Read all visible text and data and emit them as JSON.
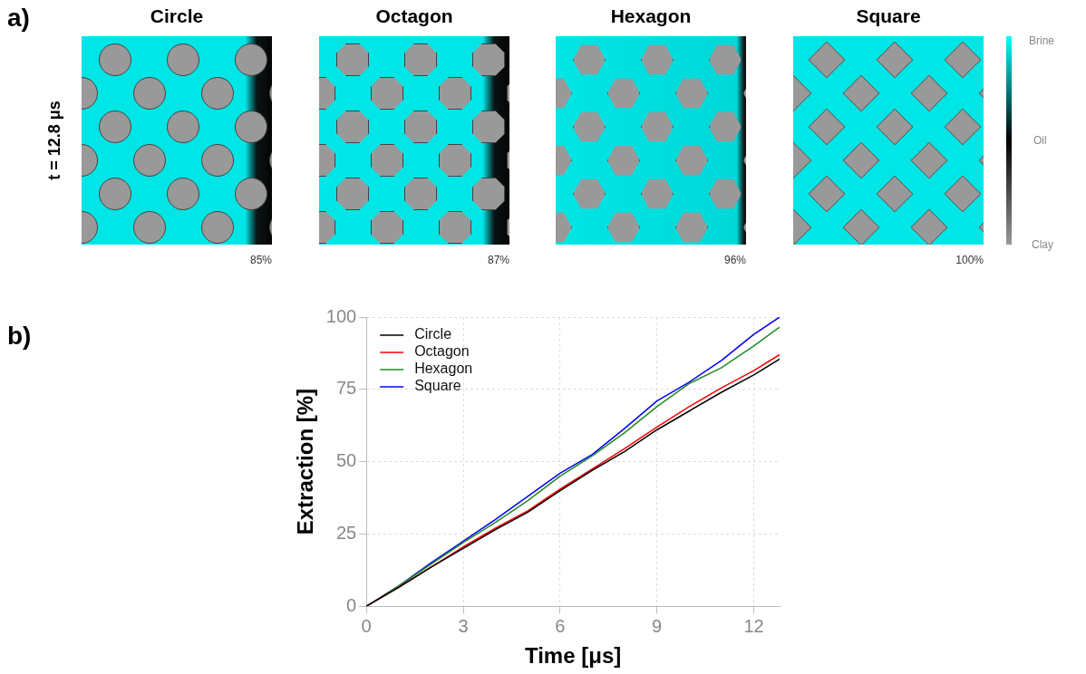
{
  "chart_data": [
    {
      "type": "other",
      "annotations": [
        "a)",
        "t = 12.8 μs",
        "Circle",
        "Octagon",
        "Hexagon",
        "Square",
        "85%",
        "87%",
        "96%",
        "100%",
        "Brine",
        "Oil",
        "Clay"
      ]
    },
    {
      "type": "line",
      "xlabel": "Time [μs]",
      "ylabel": "Extraction [%]",
      "annotations": [
        "b)"
      ],
      "x": [
        0,
        1,
        2,
        3,
        4,
        5,
        6,
        7,
        8,
        9,
        10,
        11,
        12,
        12.8
      ],
      "series": [
        {
          "name": "Circle",
          "color": "#000000",
          "values": [
            0,
            6.5,
            13.5,
            20,
            26.5,
            32.5,
            40,
            47,
            53.5,
            61,
            67.5,
            74,
            80,
            85.5
          ]
        },
        {
          "name": "Octagon",
          "color": "#ff0000",
          "values": [
            0,
            6.5,
            13.5,
            20.5,
            27,
            33,
            40.5,
            47.5,
            54.5,
            62,
            69,
            75.5,
            81.5,
            87
          ]
        },
        {
          "name": "Hexagon",
          "color": "#228b22",
          "values": [
            0,
            7,
            14.5,
            22,
            29,
            36.5,
            45,
            52,
            60,
            69,
            77,
            82.5,
            90,
            96.5
          ]
        },
        {
          "name": "Square",
          "color": "#0000ff",
          "values": [
            0,
            7,
            15,
            22.5,
            30,
            38,
            46,
            52.5,
            61.5,
            71,
            77.5,
            85,
            94,
            100
          ]
        }
      ],
      "xlim": [
        0,
        12.8
      ],
      "xticks": [
        0,
        3,
        6,
        9,
        12
      ],
      "ylim": [
        0,
        100
      ],
      "yticks": [
        0,
        25,
        50,
        75,
        100
      ],
      "grid": true,
      "legend": "top left",
      "marker": "none",
      "line_style": "solid"
    }
  ]
}
